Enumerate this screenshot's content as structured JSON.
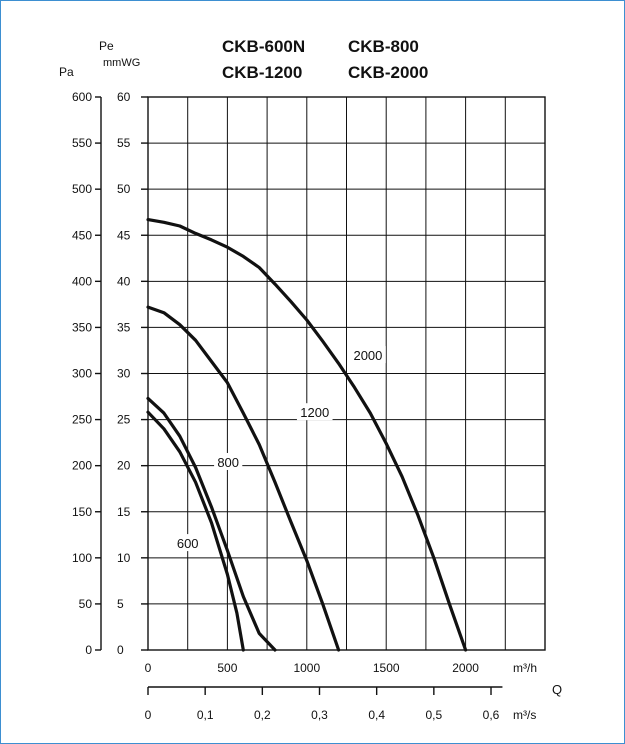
{
  "chart_data": {
    "type": "line",
    "title_lines": [
      [
        "CKB-600N",
        "CKB-800"
      ],
      [
        "CKB-1200",
        "CKB-2000"
      ]
    ],
    "y_axis_left": {
      "label": "Pa",
      "min": 0,
      "max": 600,
      "step": 50,
      "ticks": [
        "0",
        "50",
        "100",
        "150",
        "200",
        "250",
        "300",
        "350",
        "400",
        "450",
        "500",
        "550",
        "600"
      ]
    },
    "y_axis_inner": {
      "label_top": "Pe",
      "label_bottom": "mmWG",
      "ticks": [
        "0",
        "5",
        "10",
        "15",
        "20",
        "25",
        "30",
        "35",
        "40",
        "45",
        "50",
        "55",
        "60"
      ]
    },
    "x_axis_m3h": {
      "unit": "m³/h",
      "min": 0,
      "max": 2500,
      "grid_step": 250,
      "ticks": [
        {
          "v": 0,
          "t": "0"
        },
        {
          "v": 500,
          "t": "500"
        },
        {
          "v": 1000,
          "t": "1000"
        },
        {
          "v": 1500,
          "t": "1500"
        },
        {
          "v": 2000,
          "t": "2000"
        }
      ]
    },
    "x_axis_m3s": {
      "unit": "m³/s",
      "ticks": [
        {
          "v": 0,
          "t": "0"
        },
        {
          "v": 0.1,
          "t": "0,1"
        },
        {
          "v": 0.2,
          "t": "0,2"
        },
        {
          "v": 0.3,
          "t": "0,3"
        },
        {
          "v": 0.4,
          "t": "0,4"
        },
        {
          "v": 0.5,
          "t": "0,5"
        },
        {
          "v": 0.6,
          "t": "0,6"
        }
      ]
    },
    "q_label": "Q",
    "grid": true,
    "series": [
      {
        "name": "600",
        "points": [
          [
            0,
            258
          ],
          [
            100,
            240
          ],
          [
            200,
            215
          ],
          [
            300,
            182
          ],
          [
            400,
            138
          ],
          [
            500,
            82
          ],
          [
            560,
            40
          ],
          [
            600,
            0
          ]
        ]
      },
      {
        "name": "800",
        "points": [
          [
            0,
            273
          ],
          [
            100,
            257
          ],
          [
            200,
            232
          ],
          [
            300,
            198
          ],
          [
            400,
            155
          ],
          [
            500,
            108
          ],
          [
            600,
            58
          ],
          [
            700,
            18
          ],
          [
            800,
            0
          ]
        ]
      },
      {
        "name": "1200",
        "points": [
          [
            0,
            372
          ],
          [
            100,
            366
          ],
          [
            200,
            353
          ],
          [
            300,
            336
          ],
          [
            400,
            313
          ],
          [
            500,
            290
          ],
          [
            600,
            257
          ],
          [
            700,
            223
          ],
          [
            800,
            182
          ],
          [
            900,
            139
          ],
          [
            1000,
            97
          ],
          [
            1100,
            50
          ],
          [
            1200,
            0
          ]
        ]
      },
      {
        "name": "2000",
        "points": [
          [
            0,
            467
          ],
          [
            100,
            464
          ],
          [
            200,
            460
          ],
          [
            300,
            452
          ],
          [
            400,
            445
          ],
          [
            500,
            437
          ],
          [
            600,
            427
          ],
          [
            700,
            415
          ],
          [
            800,
            397
          ],
          [
            900,
            378
          ],
          [
            1000,
            358
          ],
          [
            1100,
            335
          ],
          [
            1200,
            311
          ],
          [
            1300,
            285
          ],
          [
            1400,
            257
          ],
          [
            1500,
            224
          ],
          [
            1600,
            188
          ],
          [
            1700,
            146
          ],
          [
            1800,
            100
          ],
          [
            1900,
            49
          ],
          [
            2000,
            0
          ]
        ]
      }
    ],
    "curve_labels": [
      {
        "series": "600",
        "text": "600",
        "x": 250,
        "y": 116
      },
      {
        "series": "800",
        "text": "800",
        "x": 505,
        "y": 204
      },
      {
        "series": "1200",
        "text": "1200",
        "x": 1050,
        "y": 258
      },
      {
        "series": "2000",
        "text": "2000",
        "x": 1385,
        "y": 320
      }
    ]
  }
}
